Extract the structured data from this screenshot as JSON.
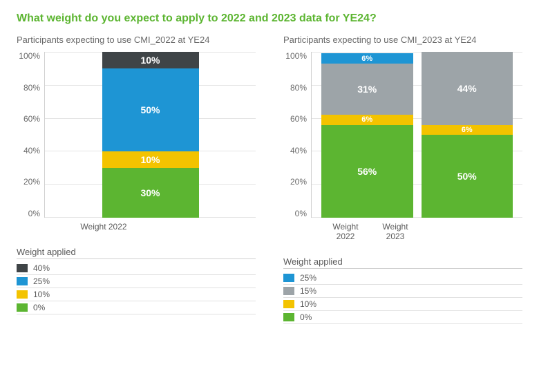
{
  "title": {
    "text": "What weight do you expect to apply to 2022 and 2023 data for YE24?",
    "color": "#5cb531"
  },
  "colors": {
    "green": "#5cb531",
    "yellow": "#f3c300",
    "blue": "#1e95d4",
    "darkgrey": "#3f4447",
    "grey": "#9da4a8",
    "grid": "#e4e4e4",
    "axis": "#d0d0d0",
    "bg": "#ffffff",
    "text": "#5a5a5a"
  },
  "axis": {
    "ymin": 0,
    "ymax": 100,
    "ystep": 20,
    "tick_labels": [
      "100%",
      "80%",
      "60%",
      "40%",
      "20%",
      "0%"
    ]
  },
  "left": {
    "subtitle": "Participants expecting to use CMI_2022 at YE24",
    "categories": [
      "Weight 2022"
    ],
    "stacks": [
      [
        {
          "value": 30,
          "label": "30%",
          "colorKey": "green"
        },
        {
          "value": 10,
          "label": "10%",
          "colorKey": "yellow"
        },
        {
          "value": 50,
          "label": "50%",
          "colorKey": "blue"
        },
        {
          "value": 10,
          "label": "10%",
          "colorKey": "darkgrey"
        }
      ]
    ],
    "legend": {
      "title": "Weight applied",
      "items": [
        {
          "label": "40%",
          "colorKey": "darkgrey"
        },
        {
          "label": "25%",
          "colorKey": "blue"
        },
        {
          "label": "10%",
          "colorKey": "yellow"
        },
        {
          "label": "0%",
          "colorKey": "green"
        }
      ]
    }
  },
  "right": {
    "subtitle": "Participants expecting to use CMI_2023 at YE24",
    "categories": [
      "Weight 2022",
      "Weight 2023"
    ],
    "stacks": [
      [
        {
          "value": 56,
          "label": "56%",
          "colorKey": "green"
        },
        {
          "value": 6,
          "label": "6%",
          "colorKey": "yellow"
        },
        {
          "value": 31,
          "label": "31%",
          "colorKey": "grey"
        },
        {
          "value": 6,
          "label": "6%",
          "colorKey": "blue"
        }
      ],
      [
        {
          "value": 50,
          "label": "50%",
          "colorKey": "green"
        },
        {
          "value": 6,
          "label": "6%",
          "colorKey": "yellow"
        },
        {
          "value": 44,
          "label": "44%",
          "colorKey": "grey"
        }
      ]
    ],
    "legend": {
      "title": "Weight applied",
      "items": [
        {
          "label": "25%",
          "colorKey": "blue"
        },
        {
          "label": "15%",
          "colorKey": "grey"
        },
        {
          "label": "10%",
          "colorKey": "yellow"
        },
        {
          "label": "0%",
          "colorKey": "green"
        }
      ]
    }
  }
}
